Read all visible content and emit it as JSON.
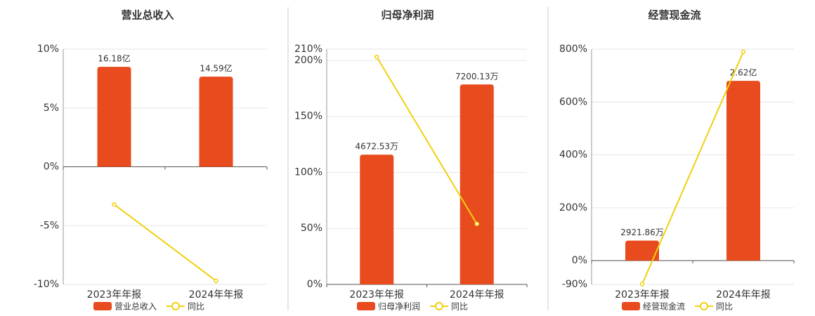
{
  "chart_data": [
    {
      "type": "combo",
      "title": "营业总收入",
      "categories": [
        "2023年年报",
        "2024年年报"
      ],
      "ylim": [
        -10,
        10
      ],
      "yticks": [
        {
          "value": -10,
          "label": "-10%"
        },
        {
          "value": -5,
          "label": "-5%"
        },
        {
          "value": 0,
          "label": "0%"
        },
        {
          "value": 5,
          "label": "5%"
        },
        {
          "value": 10,
          "label": "10%"
        }
      ],
      "grid": true,
      "series": [
        {
          "name": "营业总收入",
          "type": "bar",
          "color": "#e84c1e",
          "values": [
            1618000000,
            1459000000
          ],
          "value_labels": [
            "16.18亿",
            "14.59亿"
          ]
        },
        {
          "name": "同比",
          "type": "line",
          "color": "#f0d010",
          "values": [
            -3.2,
            -9.7
          ]
        }
      ]
    },
    {
      "type": "combo",
      "title": "归母净利润",
      "categories": [
        "2023年年报",
        "2024年年报"
      ],
      "ylim": [
        0,
        210
      ],
      "yticks": [
        {
          "value": 0,
          "label": "0%"
        },
        {
          "value": 50,
          "label": "50%"
        },
        {
          "value": 100,
          "label": "100%"
        },
        {
          "value": 150,
          "label": "150%"
        },
        {
          "value": 200,
          "label": "200%"
        },
        {
          "value": 210,
          "label": "210%"
        }
      ],
      "grid": true,
      "series": [
        {
          "name": "归母净利润",
          "type": "bar",
          "color": "#e84c1e",
          "values": [
            46725300,
            72001300
          ],
          "value_labels": [
            "4672.53万",
            "7200.13万"
          ]
        },
        {
          "name": "同比",
          "type": "line",
          "color": "#f0d010",
          "values": [
            203,
            54
          ]
        }
      ]
    },
    {
      "type": "combo",
      "title": "经营现金流",
      "categories": [
        "2023年年报",
        "2024年年报"
      ],
      "ylim": [
        -90,
        800
      ],
      "yticks": [
        {
          "value": -90,
          "label": "-90%"
        },
        {
          "value": 0,
          "label": "0%"
        },
        {
          "value": 200,
          "label": "200%"
        },
        {
          "value": 400,
          "label": "400%"
        },
        {
          "value": 600,
          "label": "600%"
        },
        {
          "value": 800,
          "label": "800%"
        }
      ],
      "grid": true,
      "series": [
        {
          "name": "经营现金流",
          "type": "bar",
          "color": "#e84c1e",
          "values": [
            29218600,
            262000000
          ],
          "value_labels": [
            "2921.86万",
            "2.62亿"
          ]
        },
        {
          "name": "同比",
          "type": "line",
          "color": "#f0d010",
          "values": [
            -89,
            790
          ]
        }
      ]
    }
  ]
}
